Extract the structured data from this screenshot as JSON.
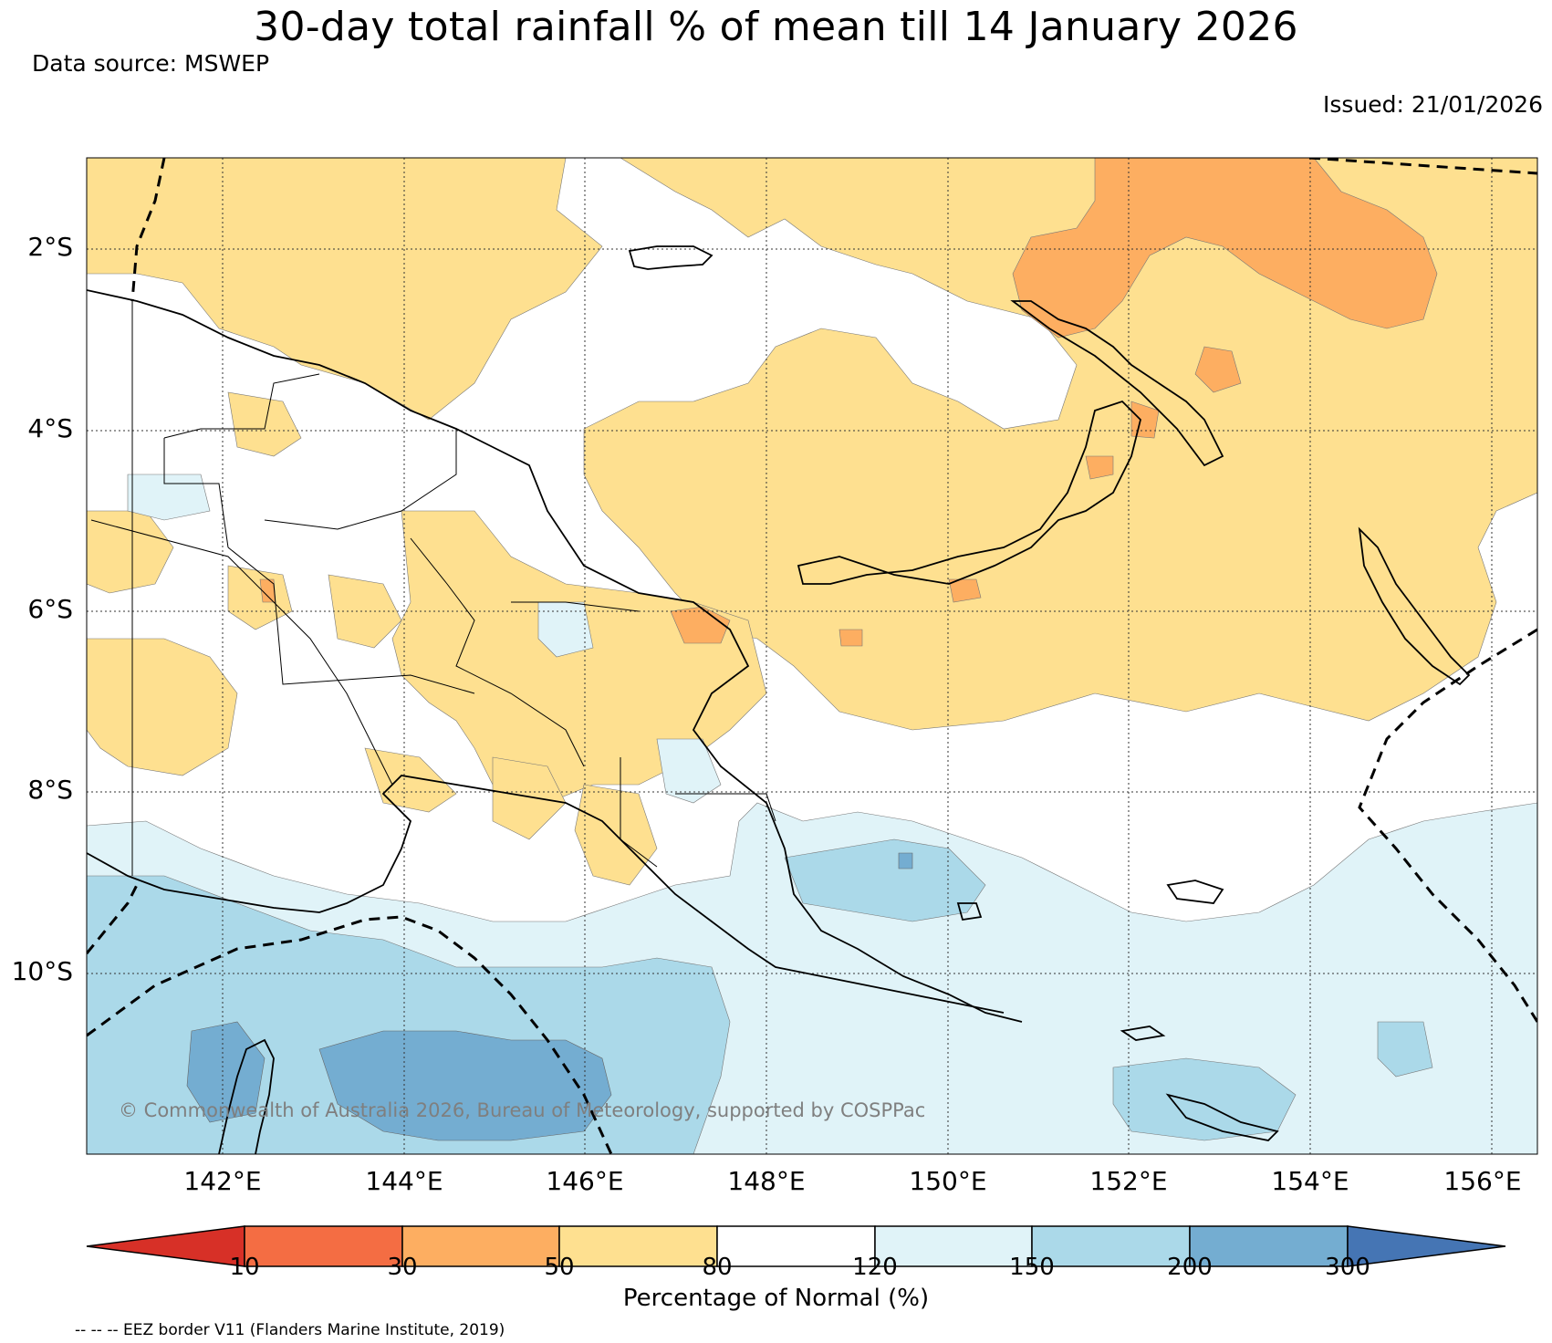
{
  "header": {
    "title": "30-day total rainfall % of mean till 14 January 2026",
    "source": "Data source: MSWEP",
    "issued": "Issued: 21/01/2026"
  },
  "map": {
    "lat_labels": [
      "2°S",
      "4°S",
      "6°S",
      "8°S",
      "10°S"
    ],
    "lon_labels": [
      "142°E",
      "144°E",
      "146°E",
      "148°E",
      "150°E",
      "152°E",
      "154°E",
      "156°E"
    ],
    "copyright": "© Commonwealth of Australia 2026, Bureau of Meteorology, supported by COSPPac"
  },
  "legend": {
    "unit": "Percentage of Normal (%)",
    "ticks": [
      "10",
      "30",
      "50",
      "80",
      "120",
      "150",
      "200",
      "300"
    ],
    "colors": [
      "#d73027",
      "#f46d43",
      "#fdae61",
      "#fee090",
      "#ffffff",
      "#e0f3f8",
      "#abd9e9",
      "#74add1",
      "#4575b4"
    ],
    "eez_note": "-- -- -- EEZ border V11 (Flanders Marine Institute, 2019)"
  }
}
